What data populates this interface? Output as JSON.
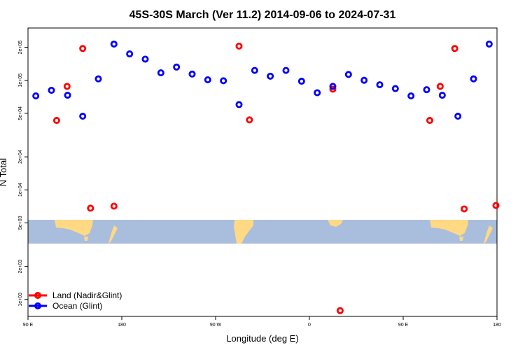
{
  "chart_data": {
    "type": "scatter",
    "title": "45S-30S March (Ver 11.2)   2014-09-06 to 2024-07-31",
    "xlabel": "Longitude (deg E)",
    "ylabel": "N Total",
    "y_scale": "log",
    "xlim": [
      90,
      540
    ],
    "ylim": [
      700,
      300000
    ],
    "x_ticks": [
      {
        "value": 90,
        "label": "90 E"
      },
      {
        "value": 180,
        "label": "180"
      },
      {
        "value": 270,
        "label": "90 W"
      },
      {
        "value": 360,
        "label": "0"
      },
      {
        "value": 450,
        "label": "90 E"
      },
      {
        "value": 540,
        "label": "180"
      }
    ],
    "y_ticks": [
      {
        "value": 1000,
        "label": "1e+03"
      },
      {
        "value": 2000,
        "label": "2e+03"
      },
      {
        "value": 5000,
        "label": "5e+03"
      },
      {
        "value": 10000,
        "label": "1e+04"
      },
      {
        "value": 20000,
        "label": "2e+04"
      },
      {
        "value": 50000,
        "label": "5e+04"
      },
      {
        "value": 100000,
        "label": "1e+05"
      },
      {
        "value": 200000,
        "label": "2e+05"
      }
    ],
    "legend_position": "bottom-left",
    "series": [
      {
        "name": "Land (Nadir&Glint)",
        "color": "#ff0000",
        "x": [
          117.5,
          127.5,
          142.5,
          150,
          172.5,
          292.5,
          302.5,
          382.5,
          389.5,
          475.5,
          485.5,
          499.5,
          508.5,
          539
        ],
        "y": [
          43000,
          88000,
          195000,
          6800,
          7100,
          205000,
          43500,
          83000,
          790,
          43000,
          88000,
          195000,
          6700,
          7200
        ]
      },
      {
        "name": "Ocean (Glint)",
        "color": "#0000ff",
        "x": [
          97.5,
          112.5,
          128,
          142.5,
          157.5,
          172.5,
          187.5,
          202.5,
          217.5,
          232.5,
          247.5,
          262.5,
          277.5,
          292.5,
          307.5,
          322.5,
          337.5,
          352.5,
          367.5,
          382.5,
          397.5,
          412.5,
          427.5,
          442.5,
          457.5,
          472.5,
          487.5,
          502.5,
          517.5,
          532.5
        ],
        "y": [
          72000,
          81000,
          73000,
          47000,
          103000,
          214000,
          174000,
          156000,
          117000,
          132000,
          114000,
          101000,
          99000,
          60000,
          123000,
          109000,
          123000,
          98000,
          77000,
          88000,
          113000,
          100000,
          91000,
          84000,
          72000,
          82000,
          73000,
          47000,
          103000,
          214000
        ]
      }
    ]
  }
}
